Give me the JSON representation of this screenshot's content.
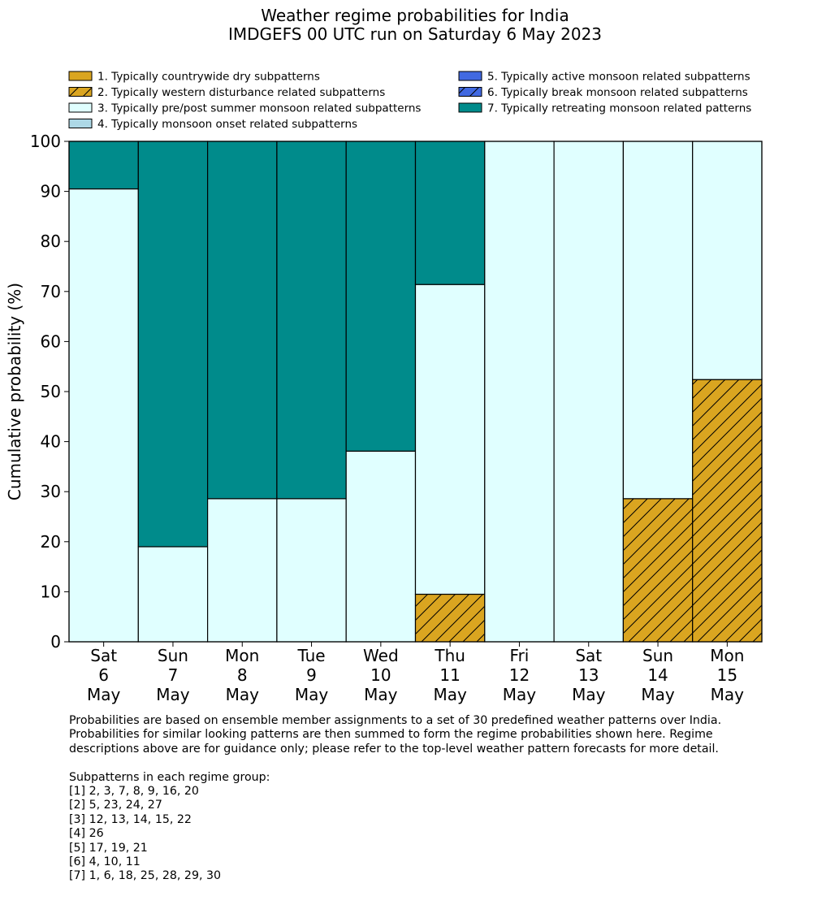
{
  "chart_data": {
    "type": "bar",
    "stacked": true,
    "title": "Weather regime probabilities for India",
    "subtitle": "IMDGEFS 00 UTC run on Saturday 6 May 2023",
    "ylabel": "Cumulative probability (%)",
    "xlabel": "",
    "ylim": [
      0,
      100
    ],
    "yticks": [
      0,
      10,
      20,
      30,
      40,
      50,
      60,
      70,
      80,
      90,
      100
    ],
    "categories": [
      [
        "Sat",
        "6",
        "May"
      ],
      [
        "Sun",
        "7",
        "May"
      ],
      [
        "Mon",
        "8",
        "May"
      ],
      [
        "Tue",
        "9",
        "May"
      ],
      [
        "Wed",
        "10",
        "May"
      ],
      [
        "Thu",
        "11",
        "May"
      ],
      [
        "Fri",
        "12",
        "May"
      ],
      [
        "Sat",
        "13",
        "May"
      ],
      [
        "Sun",
        "14",
        "May"
      ],
      [
        "Mon",
        "15",
        "May"
      ]
    ],
    "series": [
      {
        "name": "1. Typically countrywide dry subpatterns",
        "color": "#DAA520",
        "hatch": "none",
        "values": [
          0,
          0,
          0,
          0,
          0,
          0,
          0,
          0,
          0,
          0
        ]
      },
      {
        "name": "2. Typically western disturbance related subpatterns",
        "color": "#DAA520",
        "hatch": "diagonal",
        "values": [
          0,
          0,
          0,
          0,
          0,
          9.5,
          0,
          0,
          28.6,
          52.4
        ]
      },
      {
        "name": "3. Typically pre/post summer monsoon related subpatterns",
        "color": "#E0FFFF",
        "hatch": "none",
        "values": [
          90.5,
          19.0,
          28.6,
          28.6,
          38.1,
          61.9,
          100,
          100,
          71.4,
          47.6
        ]
      },
      {
        "name": "4. Typically monsoon onset related subpatterns",
        "color": "#ADD8E6",
        "hatch": "none",
        "values": [
          0,
          0,
          0,
          0,
          0,
          0,
          0,
          0,
          0,
          0
        ]
      },
      {
        "name": "5. Typically active monsoon related subpatterns",
        "color": "#4169E1",
        "hatch": "none",
        "values": [
          0,
          0,
          0,
          0,
          0,
          0,
          0,
          0,
          0,
          0
        ]
      },
      {
        "name": "6. Typically break monsoon related subpatterns",
        "color": "#4169E1",
        "hatch": "diagonal",
        "values": [
          0,
          0,
          0,
          0,
          0,
          0,
          0,
          0,
          0,
          0
        ]
      },
      {
        "name": "7. Typically retreating monsoon related patterns",
        "color": "#008B8B",
        "hatch": "none",
        "values": [
          9.5,
          81.0,
          71.4,
          71.4,
          61.9,
          28.6,
          0,
          0,
          0,
          0
        ]
      }
    ],
    "legend_placement": "top, two columns"
  },
  "notes": {
    "paragraph": [
      "Probabilities are based on ensemble member assignments to a set of 30 predefined weather patterns over India.",
      "Probabilities for similar looking patterns are then summed to form the regime probabilities shown here. Regime",
      "descriptions above are for guidance only; please refer to the top-level weather pattern forecasts for more detail."
    ],
    "groups_heading": "Subpatterns in each regime group:",
    "groups": [
      "[1] 2, 3, 7, 8, 9, 16, 20",
      "[2] 5, 23, 24, 27",
      "[3] 12, 13, 14, 15, 22",
      "[4] 26",
      "[5] 17, 19, 21",
      "[6] 4, 10, 11",
      "[7] 1, 6, 18, 25, 28, 29, 30"
    ]
  }
}
